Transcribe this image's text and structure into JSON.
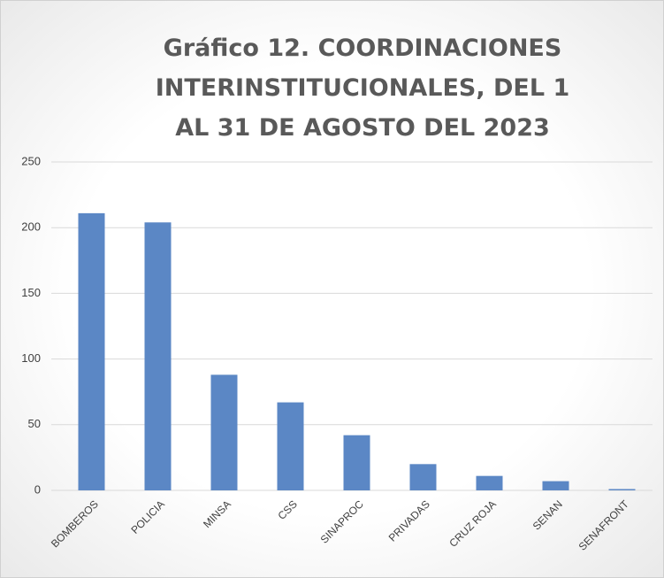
{
  "chart_data": {
    "type": "bar",
    "title": "Gráfico 12. COORDINACIONES INTERINSTITUCIONALES, DEL 1 AL 31 DE AGOSTO DEL 2023",
    "categories": [
      "BOMBEROS",
      "POLICIA",
      "MINSA",
      "CSS",
      "SINAPROC",
      "PRIVADAS",
      "CRUZ ROJA",
      "SENAN",
      "SENAFRONT"
    ],
    "values": [
      211,
      204,
      88,
      67,
      42,
      20,
      11,
      7,
      1
    ],
    "color": "#5b87c5",
    "ylim": [
      0,
      250
    ],
    "yticks": [
      0,
      50,
      100,
      150,
      200,
      250
    ],
    "grid": true
  }
}
